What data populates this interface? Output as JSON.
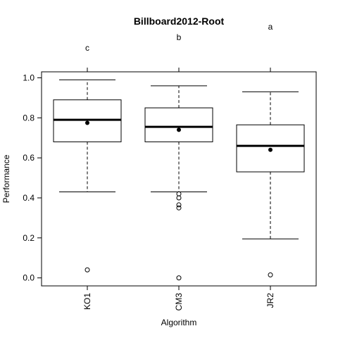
{
  "chart_data": {
    "type": "box",
    "title": "Billboard2012-Root",
    "xlabel": "Algorithm",
    "ylabel": "Performance",
    "ylim": [
      -0.04,
      1.03
    ],
    "yticks": [
      "0.0",
      "0.2",
      "0.4",
      "0.6",
      "0.8",
      "1.0"
    ],
    "categories": [
      "KO1",
      "CM3",
      "JR2"
    ],
    "significance_letters": [
      "c",
      "b",
      "a"
    ],
    "boxes": [
      {
        "name": "KO1",
        "whisker_low": 0.43,
        "q1": 0.68,
        "median": 0.79,
        "q3": 0.89,
        "whisker_high": 0.99,
        "mean": 0.775,
        "outliers": [
          0.04
        ]
      },
      {
        "name": "CM3",
        "whisker_low": 0.43,
        "q1": 0.68,
        "median": 0.755,
        "q3": 0.85,
        "whisker_high": 0.96,
        "mean": 0.74,
        "outliers": [
          0.0,
          0.35,
          0.365,
          0.4,
          0.42
        ]
      },
      {
        "name": "JR2",
        "whisker_low": 0.195,
        "q1": 0.53,
        "median": 0.66,
        "q3": 0.765,
        "whisker_high": 0.93,
        "mean": 0.64,
        "outliers": [
          0.015
        ]
      }
    ]
  }
}
